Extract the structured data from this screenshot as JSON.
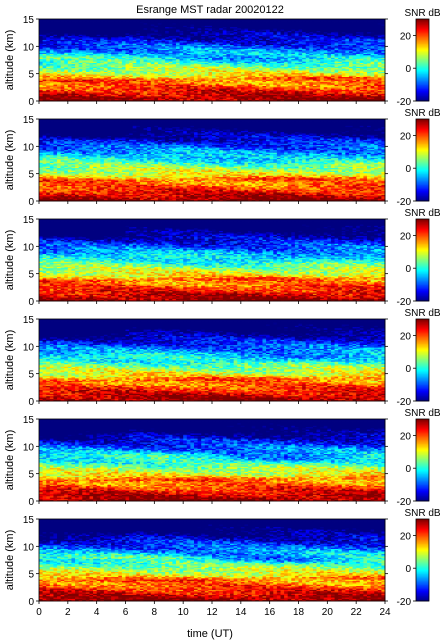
{
  "figure": {
    "title": "Esrange MST radar 20020122"
  },
  "chart_data": {
    "type": "heatmap",
    "title": "Esrange MST radar 20020122",
    "xlabel": "time (UT)",
    "ylabel": "altitude (km)",
    "colorbar_label": "SNR dB",
    "xlim": [
      0,
      24
    ],
    "ylim": [
      0,
      15
    ],
    "clim": [
      -20,
      30
    ],
    "x_ticks": [
      "0",
      "2",
      "4",
      "6",
      "8",
      "10",
      "12",
      "14",
      "16",
      "18",
      "20",
      "22",
      "24"
    ],
    "y_ticks": [
      "0",
      "5",
      "10",
      "15"
    ],
    "colorbar_ticks": [
      "-20",
      "0",
      "20"
    ],
    "colormap": "jet",
    "panel_count": 6
  }
}
